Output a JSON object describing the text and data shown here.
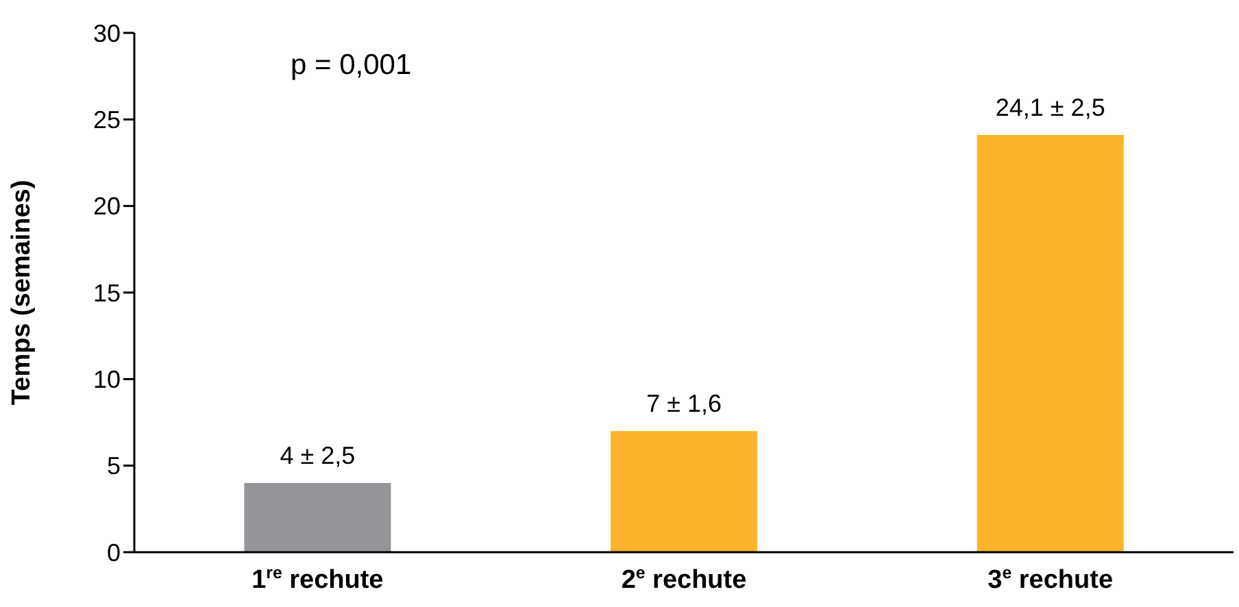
{
  "chart_data": {
    "type": "bar",
    "ylabel": "Temps (semaines)",
    "categories": [
      "1$^{re}$ rechute",
      "2$^{e}$ rechute",
      "3$^{e}$ rechute"
    ],
    "values": [
      4,
      7,
      24.1
    ],
    "colors": [
      "#939598",
      "#fbb42b",
      "#fbb42b"
    ],
    "value_labels": [
      "4 ± 2,5",
      "7 ± 1,6",
      "24,1 ± 2,5"
    ],
    "ylim": [
      0,
      30
    ],
    "yticks": [
      0,
      5,
      10,
      15,
      20,
      25,
      30
    ],
    "grid": false,
    "legend": false,
    "annotations": [
      "p = 0,001"
    ]
  }
}
